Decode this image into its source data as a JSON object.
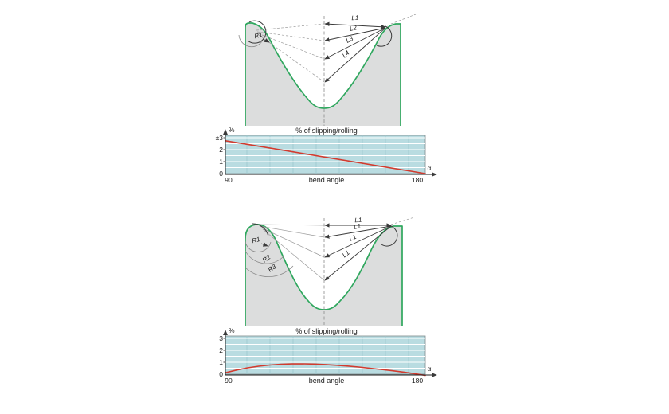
{
  "colors": {
    "die_fill": "#dcdddd",
    "die_outline_green": "#2fa75e",
    "chart_background": "#b9dce1",
    "chart_vertical_grid": "#9cc7ce",
    "chart_horizontal_grid": "#ffffff",
    "curve_red": "#d23b2f",
    "annotation_dark": "#3a3a3a",
    "annotation_gray": "#9a9a9a"
  },
  "diagrams": [
    {
      "length_labels": [
        "L1",
        "L2",
        "L3",
        "L4"
      ],
      "radius_labels": [
        "R1"
      ]
    },
    {
      "length_labels": [
        "L1",
        "L1",
        "L1",
        "L1"
      ],
      "radius_labels": [
        "R1",
        "R2",
        "R3"
      ]
    }
  ],
  "chart_data": [
    {
      "type": "line",
      "title": "% of slipping/rolling",
      "xlabel": "bend angle",
      "ylabel": "%",
      "x_axis_symbol": "α",
      "x_ticks": [
        "90",
        "180"
      ],
      "y_ticks": [
        "±3",
        "2",
        "1",
        "0"
      ],
      "xlim": [
        90,
        180
      ],
      "ylim": [
        0,
        3.2
      ],
      "grid": "on",
      "legend": "none",
      "series": [
        {
          "name": "% of slipping/rolling",
          "color": "#d23b2f",
          "x": [
            90,
            180
          ],
          "y": [
            2.75,
            0
          ]
        }
      ]
    },
    {
      "type": "line",
      "title": "% of slipping/rolling",
      "xlabel": "bend angle",
      "ylabel": "%",
      "x_axis_symbol": "α",
      "x_ticks": [
        "90",
        "180"
      ],
      "y_ticks": [
        "3",
        "2",
        "1",
        "0"
      ],
      "xlim": [
        90,
        180
      ],
      "ylim": [
        0,
        3.2
      ],
      "grid": "on",
      "legend": "none",
      "series": [
        {
          "name": "% of slipping/rolling",
          "color": "#d23b2f",
          "x": [
            90,
            95,
            100,
            105,
            110,
            115,
            120,
            125,
            130,
            135,
            140,
            145,
            150,
            155,
            160,
            165,
            170,
            175,
            180
          ],
          "y": [
            0.12,
            0.35,
            0.53,
            0.67,
            0.77,
            0.83,
            0.86,
            0.87,
            0.85,
            0.81,
            0.75,
            0.68,
            0.6,
            0.5,
            0.4,
            0.29,
            0.18,
            0.05,
            -0.1
          ]
        }
      ]
    }
  ]
}
